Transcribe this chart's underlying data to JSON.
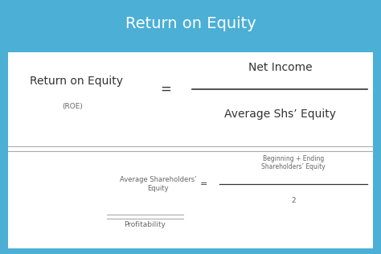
{
  "title": "Return on Equity",
  "title_bg_color": "#4BAFD6",
  "title_text_color": "#FFFFFF",
  "body_bg_color": "#FFFFFF",
  "border_color": "#4BAFD6",
  "main_label": "Return on Equity",
  "main_sublabel": "(ROE)",
  "equals_sign": "=",
  "numerator": "Net Income",
  "denominator": "Average Shs’ Equity",
  "separator_color": "#aaaaaa",
  "sub_label": "Average Shareholders’\nEquity",
  "sub_equals": "=",
  "sub_numerator": "Beginning + Ending\nShareholders’ Equity",
  "sub_denominator": "2",
  "bottom_label": "Profitability",
  "text_color": "#333333",
  "small_text_color": "#666666"
}
